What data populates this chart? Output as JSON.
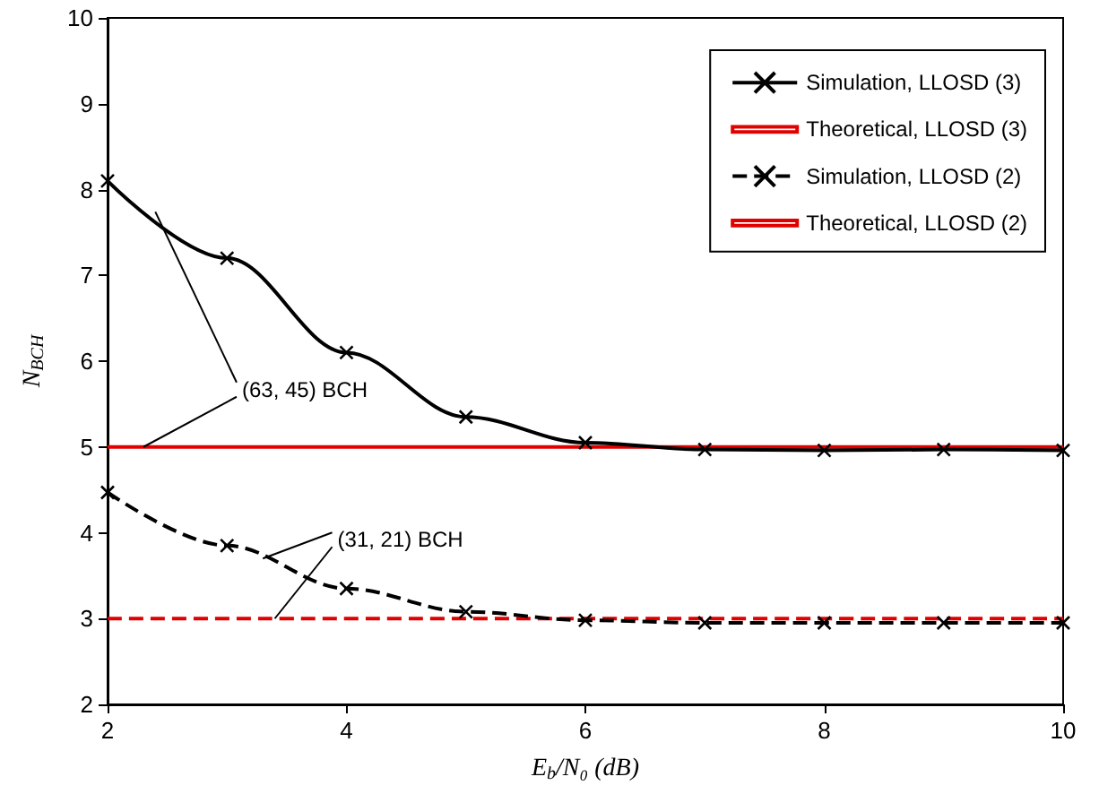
{
  "chart_data": {
    "type": "line",
    "xlabel": "E$_{b}$/N₀ (dB)",
    "ylabel": "N$_{BCH}$",
    "xlim": [
      2,
      10
    ],
    "xticks": [
      2,
      4,
      6,
      8,
      10
    ],
    "ylim": [
      2,
      10
    ],
    "yticks": [
      2,
      3,
      4,
      5,
      6,
      7,
      8,
      9,
      10
    ],
    "grid": false,
    "legend": "top right",
    "series": [
      {
        "name": "Simulation, LLOSD (3)",
        "color": "#000000",
        "marker": "cross",
        "line_style": "solid",
        "x": [
          2,
          3,
          4,
          5,
          6,
          7,
          8,
          9,
          10
        ],
        "values": [
          8.1,
          7.2,
          6.1,
          5.35,
          5.05,
          4.97,
          4.96,
          4.97,
          4.96
        ]
      },
      {
        "name": "Theoretical, LLOSD (3)",
        "color": "#e00000",
        "marker": "none",
        "line_style": "solid",
        "x": [
          2,
          10
        ],
        "values": [
          5,
          5
        ]
      },
      {
        "name": "Simulation, LLOSD (2)",
        "color": "#000000",
        "marker": "cross",
        "line_style": "dashed",
        "x": [
          2,
          3,
          4,
          5,
          6,
          7,
          8,
          9,
          10
        ],
        "values": [
          4.47,
          3.85,
          3.35,
          3.08,
          2.98,
          2.95,
          2.95,
          2.95,
          2.95
        ]
      },
      {
        "name": "Theoretical, LLOSD (2)",
        "color": "#e00000",
        "marker": "none",
        "line_style": "dashed",
        "x": [
          2,
          10
        ],
        "values": [
          3,
          3
        ]
      }
    ],
    "annotations": [
      {
        "text": "(63, 45) BCH",
        "x": 2.3,
        "y": 5
      },
      {
        "text": "(31, 21) BCH",
        "x": 3.4,
        "y": 3
      }
    ]
  }
}
